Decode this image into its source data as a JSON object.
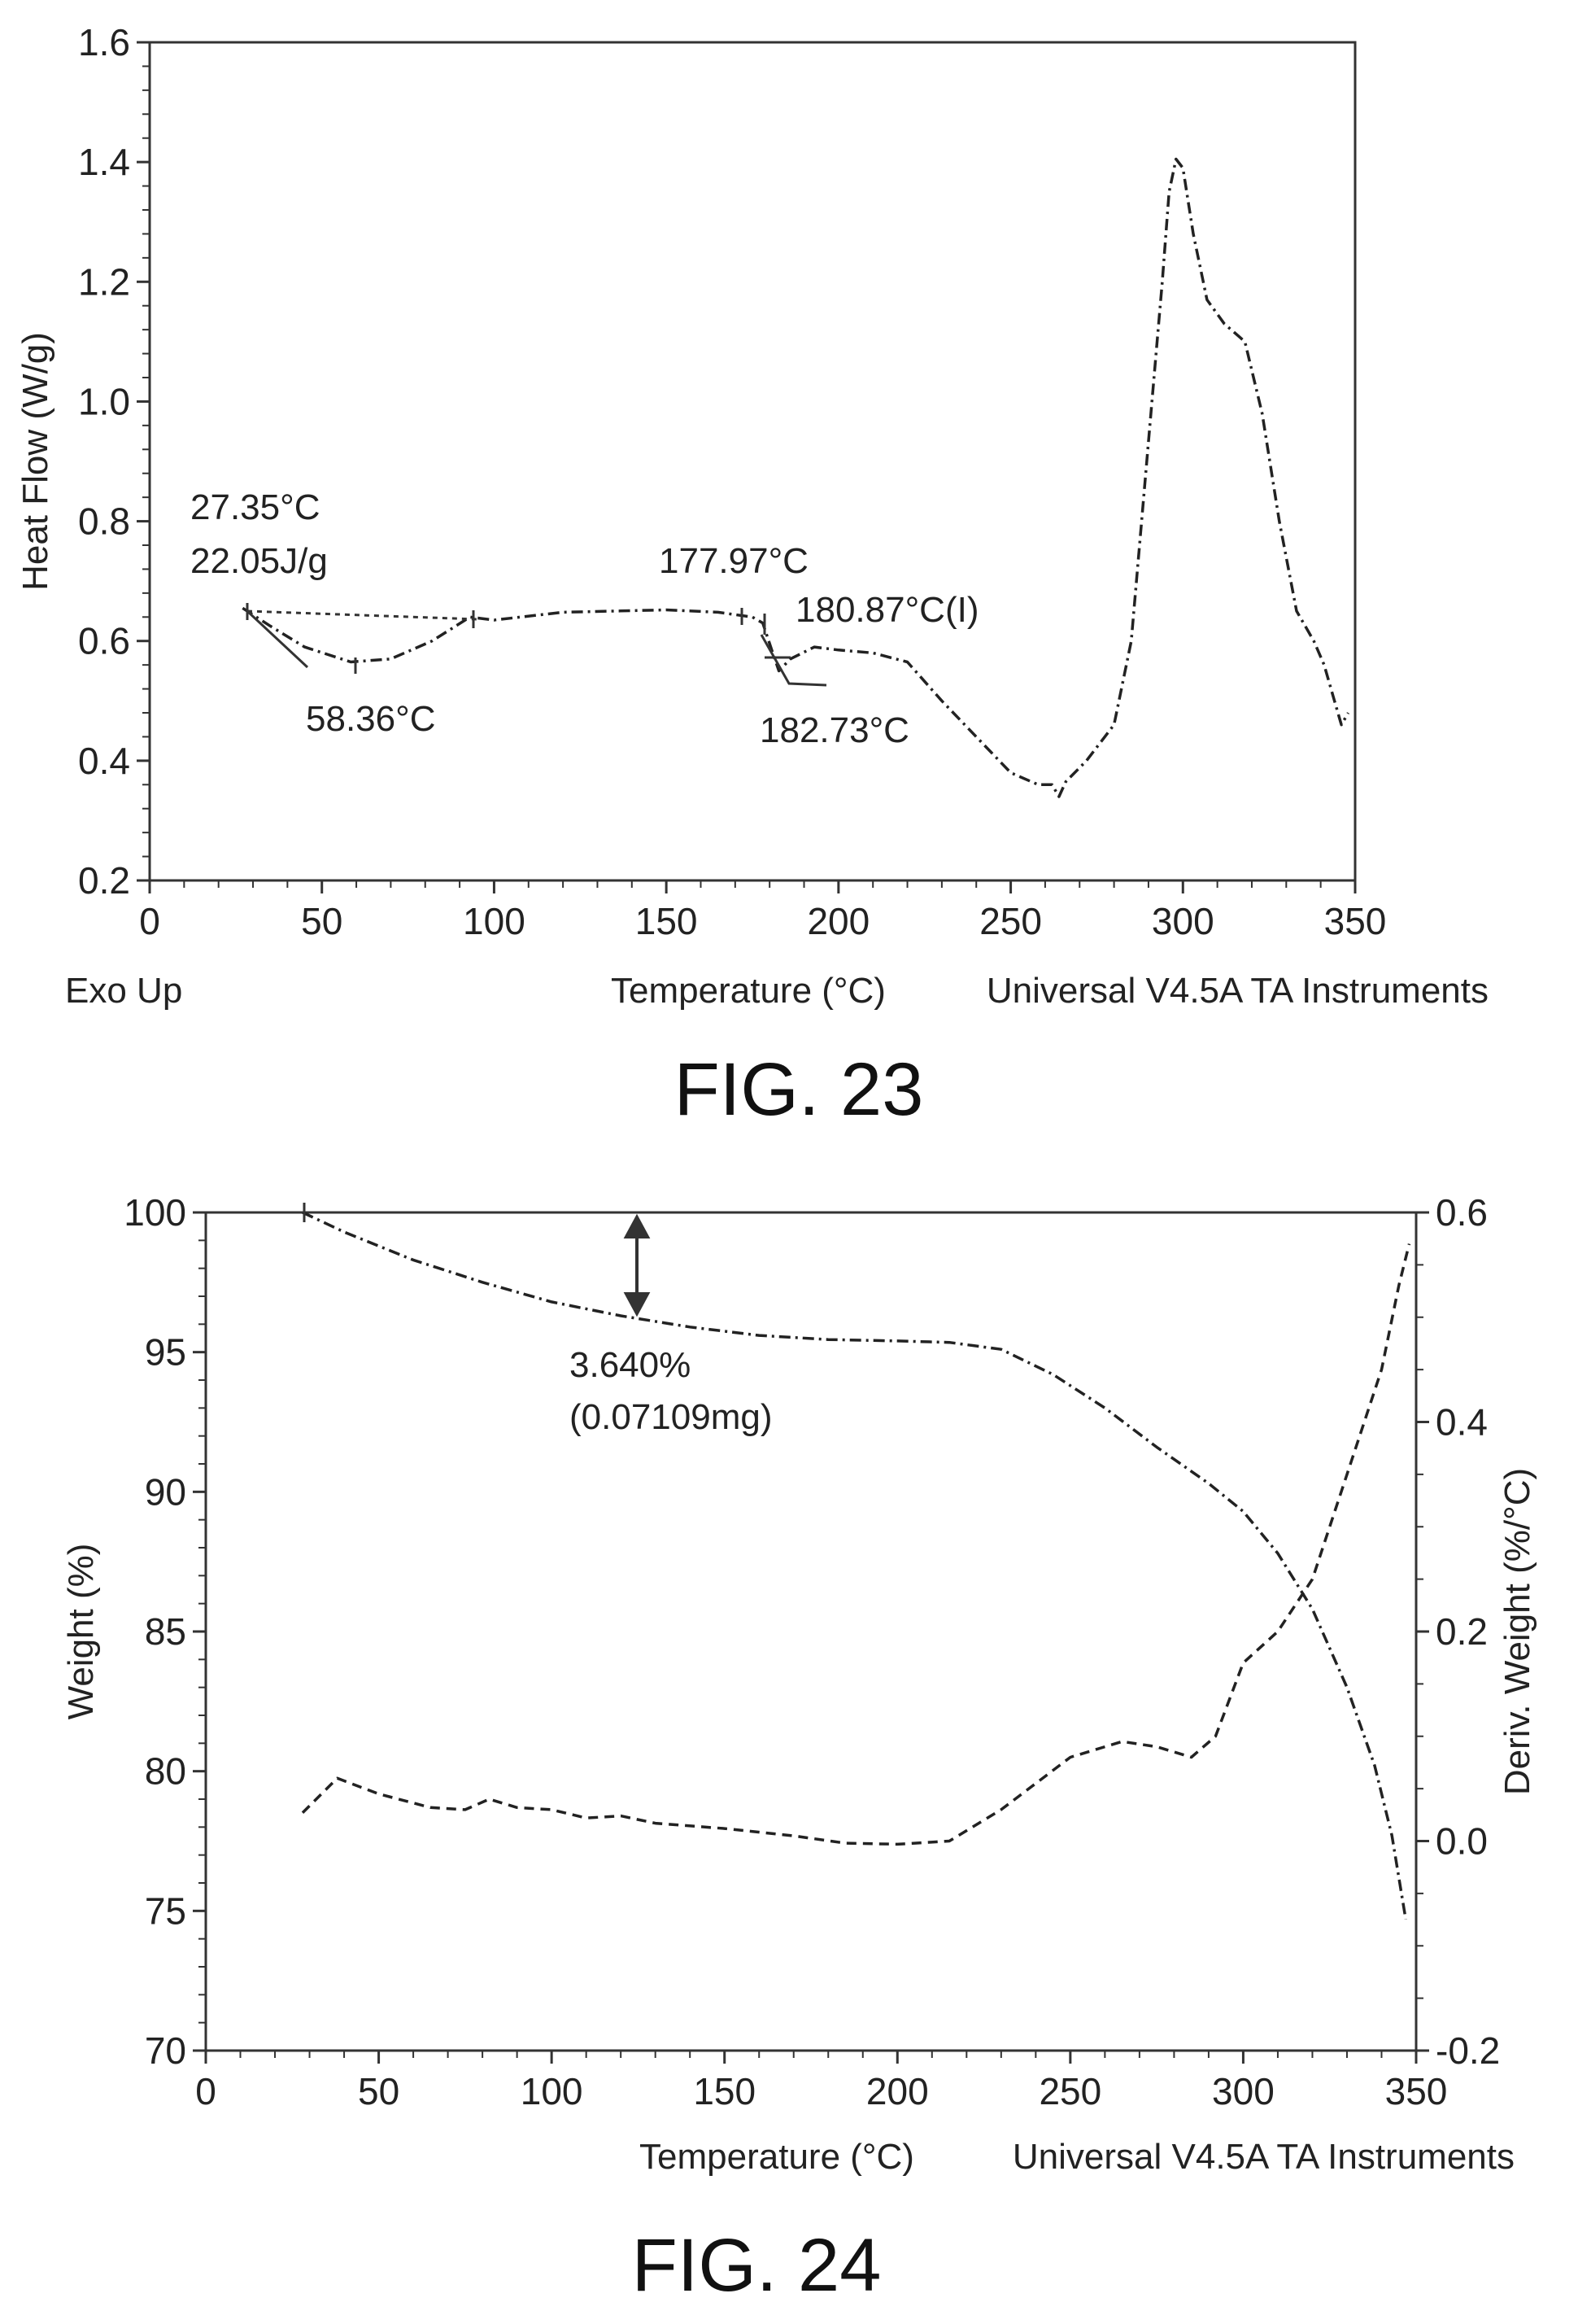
{
  "chart_data": [
    {
      "type": "line",
      "caption": "FIG. 23",
      "xlabel": "Temperature (°C)",
      "ylabel": "Heat Flow (W/g)",
      "xlim": [
        0,
        350
      ],
      "ylim": [
        0.2,
        1.6
      ],
      "x_ticks": [
        "0",
        "50",
        "100",
        "150",
        "200",
        "250",
        "300",
        "350"
      ],
      "y_ticks": [
        "0.2",
        "0.4",
        "0.6",
        "0.8",
        "1.0",
        "1.2",
        "1.4",
        "1.6"
      ],
      "footer_left": "Exo Up",
      "footer_right": "Universal V4.5A TA Instruments",
      "grid": false,
      "series": [
        {
          "style": "dash-dot",
          "points": [
            [
              27,
              0.655
            ],
            [
              35,
              0.625
            ],
            [
              45,
              0.59
            ],
            [
              58.4,
              0.565
            ],
            [
              70,
              0.57
            ],
            [
              82,
              0.6
            ],
            [
              93,
              0.64
            ],
            [
              100,
              0.635
            ],
            [
              120,
              0.648
            ],
            [
              150,
              0.652
            ],
            [
              165,
              0.648
            ],
            [
              175,
              0.64
            ],
            [
              178,
              0.63
            ],
            [
              180.9,
              0.58
            ],
            [
              182.7,
              0.55
            ],
            [
              186,
              0.57
            ],
            [
              193,
              0.59
            ],
            [
              200,
              0.585
            ],
            [
              210,
              0.58
            ],
            [
              220,
              0.565
            ],
            [
              230,
              0.5
            ],
            [
              240,
              0.44
            ],
            [
              250,
              0.38
            ],
            [
              258,
              0.36
            ],
            [
              262,
              0.36
            ],
            [
              264,
              0.34
            ],
            [
              266,
              0.365
            ],
            [
              272,
              0.4
            ],
            [
              280,
              0.46
            ],
            [
              285,
              0.6
            ],
            [
              288,
              0.8
            ],
            [
              291,
              1.0
            ],
            [
              294,
              1.2
            ],
            [
              296,
              1.35
            ],
            [
              298,
              1.405
            ],
            [
              300,
              1.39
            ],
            [
              303,
              1.28
            ],
            [
              307,
              1.17
            ],
            [
              312,
              1.13
            ],
            [
              318,
              1.1
            ],
            [
              323,
              0.98
            ],
            [
              328,
              0.8
            ],
            [
              333,
              0.65
            ],
            [
              338,
              0.6
            ],
            [
              341,
              0.56
            ],
            [
              344,
              0.5
            ],
            [
              346,
              0.46
            ],
            [
              348,
              0.48
            ]
          ]
        }
      ],
      "annotations": {
        "onset_temp": "27.35°C",
        "enthalpy": "22.05J/g",
        "peak1": "58.36°C",
        "onset2": "177.97°C",
        "inflection": "180.87°C(I)",
        "peak2": "182.73°C"
      }
    },
    {
      "type": "line",
      "caption": "FIG. 24",
      "xlabel": "Temperature (°C)",
      "ylabel": "Weight (%)",
      "y2label": "Deriv. Weight (%/°C)",
      "xlim": [
        0,
        350
      ],
      "ylim": [
        70,
        100
      ],
      "y2lim": [
        -0.2,
        0.6
      ],
      "x_ticks": [
        "0",
        "50",
        "100",
        "150",
        "200",
        "250",
        "300",
        "350"
      ],
      "y_ticks": [
        "70",
        "75",
        "80",
        "85",
        "90",
        "95",
        "100"
      ],
      "y2_ticks": [
        "-0.2",
        "0.0",
        "0.2",
        "0.4",
        "0.6"
      ],
      "footer_right": "Universal V4.5A TA Instruments",
      "grid": false,
      "series": [
        {
          "axis": "left",
          "style": "dash-dot",
          "points": [
            [
              28,
              100
            ],
            [
              40,
              99.3
            ],
            [
              60,
              98.3
            ],
            [
              80,
              97.5
            ],
            [
              100,
              96.8
            ],
            [
              120,
              96.3
            ],
            [
              140,
              95.9
            ],
            [
              160,
              95.6
            ],
            [
              180,
              95.45
            ],
            [
              200,
              95.4
            ],
            [
              215,
              95.35
            ],
            [
              230,
              95.1
            ],
            [
              245,
              94.2
            ],
            [
              260,
              93
            ],
            [
              275,
              91.6
            ],
            [
              290,
              90.3
            ],
            [
              300,
              89.3
            ],
            [
              310,
              87.8
            ],
            [
              320,
              85.8
            ],
            [
              330,
              83
            ],
            [
              338,
              80.2
            ],
            [
              343,
              77.7
            ],
            [
              347,
              74.7
            ]
          ]
        },
        {
          "axis": "right",
          "style": "dashed",
          "points": [
            [
              28,
              0.027
            ],
            [
              38,
              0.06
            ],
            [
              50,
              0.045
            ],
            [
              65,
              0.032
            ],
            [
              75,
              0.03
            ],
            [
              82,
              0.04
            ],
            [
              90,
              0.032
            ],
            [
              100,
              0.03
            ],
            [
              110,
              0.022
            ],
            [
              120,
              0.024
            ],
            [
              130,
              0.017
            ],
            [
              150,
              0.012
            ],
            [
              170,
              0.005
            ],
            [
              185,
              -0.002
            ],
            [
              200,
              -0.003
            ],
            [
              215,
              0.0
            ],
            [
              230,
              0.03
            ],
            [
              250,
              0.08
            ],
            [
              265,
              0.095
            ],
            [
              275,
              0.09
            ],
            [
              285,
              0.08
            ],
            [
              292,
              0.1
            ],
            [
              300,
              0.17
            ],
            [
              310,
              0.2
            ],
            [
              320,
              0.25
            ],
            [
              330,
              0.35
            ],
            [
              340,
              0.45
            ],
            [
              345,
              0.53
            ],
            [
              348,
              0.57
            ]
          ]
        }
      ],
      "annotations": {
        "weight_loss": "3.640%",
        "weight_loss_mass": "(0.07109mg)"
      }
    }
  ]
}
